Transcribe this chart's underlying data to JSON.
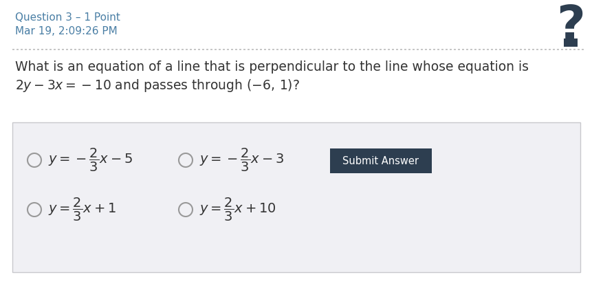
{
  "title_line1": "Question 3 – 1 Point",
  "title_line2": "Mar 19, 2:09:26 PM",
  "title_color": "#4a7fa5",
  "background_color": "#ffffff",
  "question_text_line1": "What is an equation of a line that is perpendicular to the line whose equation is",
  "answer_box_bg": "#f0f0f4",
  "answer_box_border": "#c8c8cc",
  "submit_btn_color": "#2d3e50",
  "submit_btn_text": "Submit Answer",
  "submit_btn_text_color": "#ffffff",
  "question_text_color": "#333333",
  "circle_color": "#999999",
  "question_mark_color": "#2d3e50",
  "dotted_line_color": "#bbbbbb",
  "title_fontsize": 11,
  "question_fontsize": 13.5,
  "option_fontsize": 14
}
